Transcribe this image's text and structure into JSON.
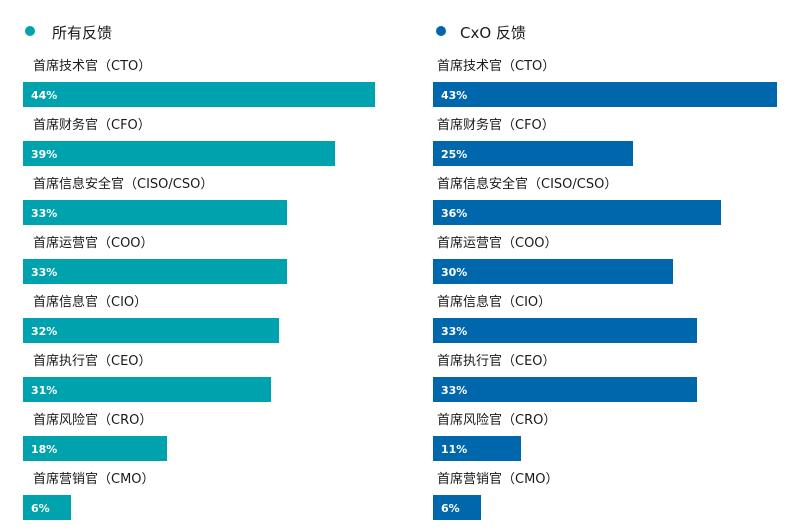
{
  "chart_data": [
    {
      "type": "bar",
      "title": "所有反馈",
      "color": "#00A3AD",
      "categories": [
        "首席技术官（CTO）",
        "首席财务官（CFO）",
        "首席信息安全官（CISO/CSO）",
        "首席运营官（COO）",
        "首席信息官（CIO）",
        "首席执行官（CEO）",
        "首席风险官（CRO）",
        "首席营销官（CMO）"
      ],
      "values": [
        44,
        39,
        33,
        33,
        32,
        31,
        18,
        6
      ],
      "value_labels": [
        "44%",
        "39%",
        "33%",
        "33%",
        "32%",
        "31%",
        "18%",
        "6%"
      ],
      "orientation": "horizontal",
      "grid": false,
      "legend": "top-left"
    },
    {
      "type": "bar",
      "title": "CxO 反馈",
      "color": "#0067AC",
      "categories": [
        "首席技术官（CTO）",
        "首席财务官（CFO）",
        "首席信息安全官（CISO/CSO）",
        "首席运营官（COO）",
        "首席信息官（CIO）",
        "首席执行官（CEO）",
        "首席风险官（CRO）",
        "首席营销官（CMO）"
      ],
      "values": [
        43,
        25,
        36,
        30,
        33,
        33,
        11,
        6
      ],
      "value_labels": [
        "43%",
        "25%",
        "36%",
        "30%",
        "33%",
        "33%",
        "11%",
        "6%"
      ],
      "orientation": "horizontal",
      "grid": false,
      "legend": "top-left"
    }
  ]
}
